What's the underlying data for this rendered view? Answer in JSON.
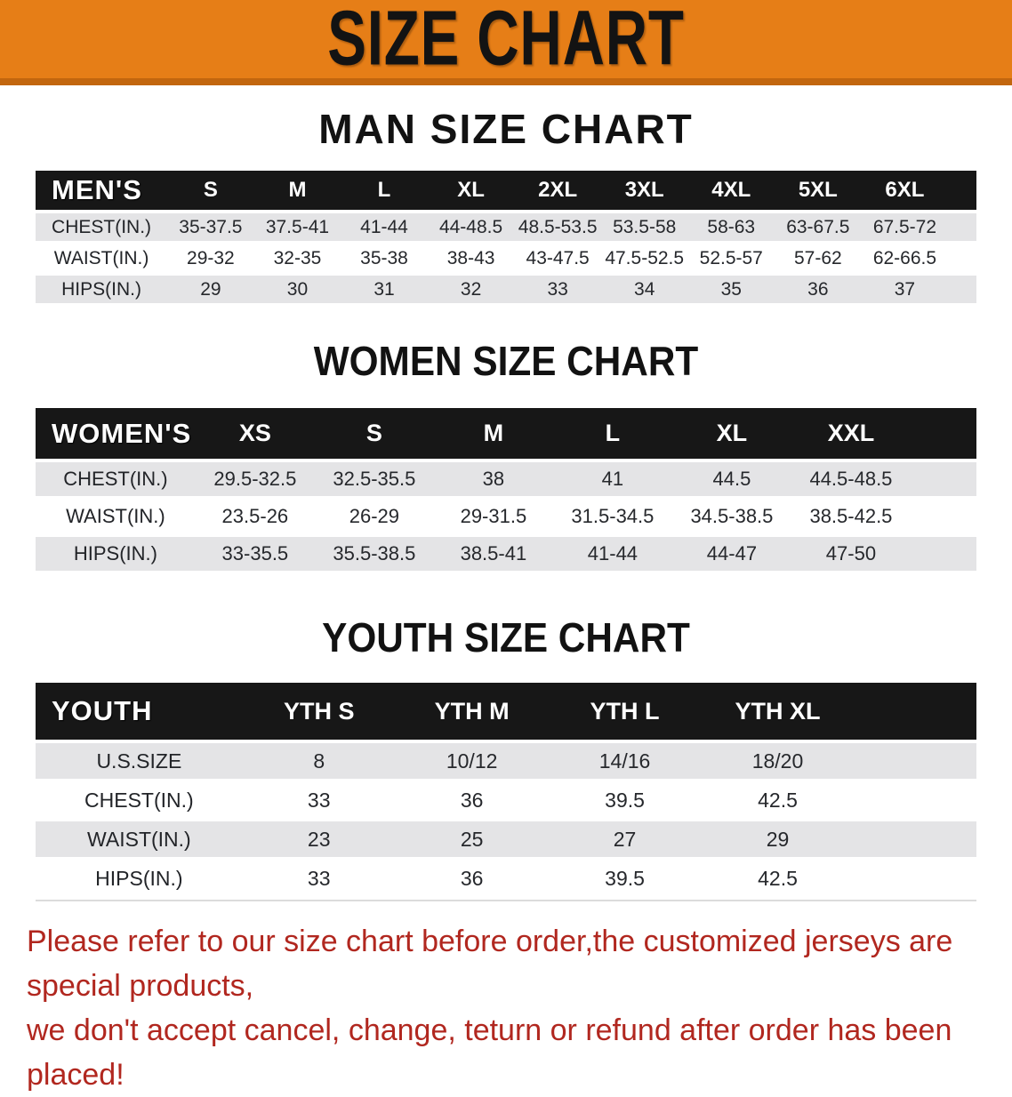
{
  "banner": {
    "title": "SIZE CHART"
  },
  "colors": {
    "banner_bg": "#E67E17",
    "banner_edge": "#C2660E",
    "table_header_bar": "#171717",
    "row_shade": "#E4E4E6",
    "footer_text": "#B1271F"
  },
  "tables": {
    "men": {
      "heading": "MAN SIZE CHART",
      "corner": "MEN'S",
      "sizes": [
        "S",
        "M",
        "L",
        "XL",
        "2XL",
        "3XL",
        "4XL",
        "5XL",
        "6XL"
      ],
      "rows": [
        {
          "label": "CHEST(IN.)",
          "values": [
            "35-37.5",
            "37.5-41",
            "41-44",
            "44-48.5",
            "48.5-53.5",
            "53.5-58",
            "58-63",
            "63-67.5",
            "67.5-72"
          ]
        },
        {
          "label": "WAIST(IN.)",
          "values": [
            "29-32",
            "32-35",
            "35-38",
            "38-43",
            "43-47.5",
            "47.5-52.5",
            "52.5-57",
            "57-62",
            "62-66.5"
          ]
        },
        {
          "label": "HIPS(IN.)",
          "values": [
            "29",
            "30",
            "31",
            "32",
            "33",
            "34",
            "35",
            "36",
            "37"
          ]
        }
      ]
    },
    "women": {
      "heading": "WOMEN SIZE CHART",
      "corner": "WOMEN'S",
      "sizes": [
        "XS",
        "S",
        "M",
        "L",
        "XL",
        "XXL"
      ],
      "rows": [
        {
          "label": "CHEST(IN.)",
          "values": [
            "29.5-32.5",
            "32.5-35.5",
            "38",
            "41",
            "44.5",
            "44.5-48.5"
          ]
        },
        {
          "label": "WAIST(IN.)",
          "values": [
            "23.5-26",
            "26-29",
            "29-31.5",
            "31.5-34.5",
            "34.5-38.5",
            "38.5-42.5"
          ]
        },
        {
          "label": "HIPS(IN.)",
          "values": [
            "33-35.5",
            "35.5-38.5",
            "38.5-41",
            "41-44",
            "44-47",
            "47-50"
          ]
        }
      ]
    },
    "youth": {
      "heading": "YOUTH SIZE CHART",
      "corner": "YOUTH",
      "sizes": [
        "YTH S",
        "YTH M",
        "YTH L",
        "YTH XL"
      ],
      "rows": [
        {
          "label": "U.S.SIZE",
          "values": [
            "8",
            "10/12",
            "14/16",
            "18/20"
          ]
        },
        {
          "label": "CHEST(IN.)",
          "values": [
            "33",
            "36",
            "39.5",
            "42.5"
          ]
        },
        {
          "label": "WAIST(IN.)",
          "values": [
            "23",
            "25",
            "27",
            "29"
          ]
        },
        {
          "label": "HIPS(IN.)",
          "values": [
            "33",
            "36",
            "39.5",
            "42.5"
          ]
        }
      ]
    }
  },
  "footer": {
    "line1": "Please refer to our size chart before order,the customized jerseys are special products,",
    "line2": "we don't accept cancel, change, teturn or refund after order has been placed!"
  }
}
